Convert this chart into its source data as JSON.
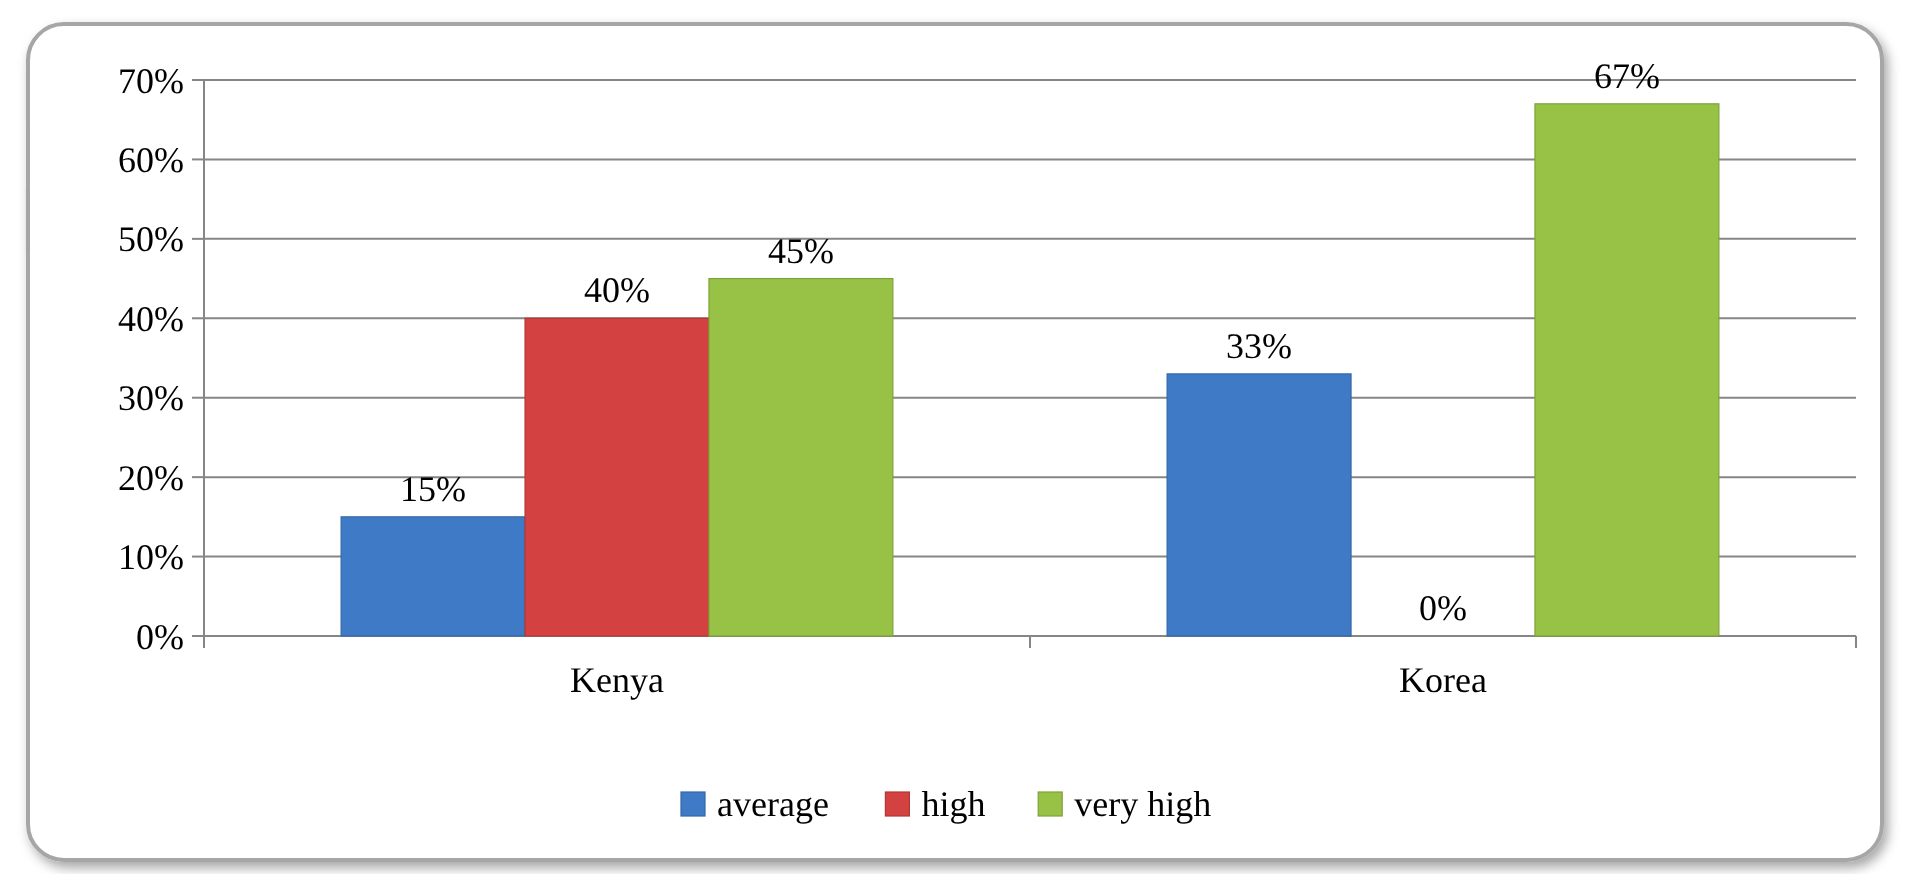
{
  "chart_data": {
    "type": "bar",
    "categories": [
      "Kenya",
      "Korea"
    ],
    "series": [
      {
        "name": "average",
        "color": "#3f7ac6",
        "values": [
          15,
          33
        ],
        "value_labels": [
          "15%",
          "33%"
        ]
      },
      {
        "name": "high",
        "color": "#d34240",
        "values": [
          40,
          0
        ],
        "value_labels": [
          "40%",
          "0%"
        ]
      },
      {
        "name": "very high",
        "color": "#97c245",
        "values": [
          45,
          67
        ],
        "value_labels": [
          "45%",
          "67%"
        ]
      }
    ],
    "ylim": [
      0,
      70
    ],
    "yticks": [
      {
        "value": 0,
        "label": "0%"
      },
      {
        "value": 10,
        "label": "10%"
      },
      {
        "value": 20,
        "label": "20%"
      },
      {
        "value": 30,
        "label": "30%"
      },
      {
        "value": 40,
        "label": "40%"
      },
      {
        "value": 50,
        "label": "50%"
      },
      {
        "value": 60,
        "label": "60%"
      },
      {
        "value": 70,
        "label": "70%"
      }
    ],
    "grid": "y",
    "legend": "bottom"
  }
}
